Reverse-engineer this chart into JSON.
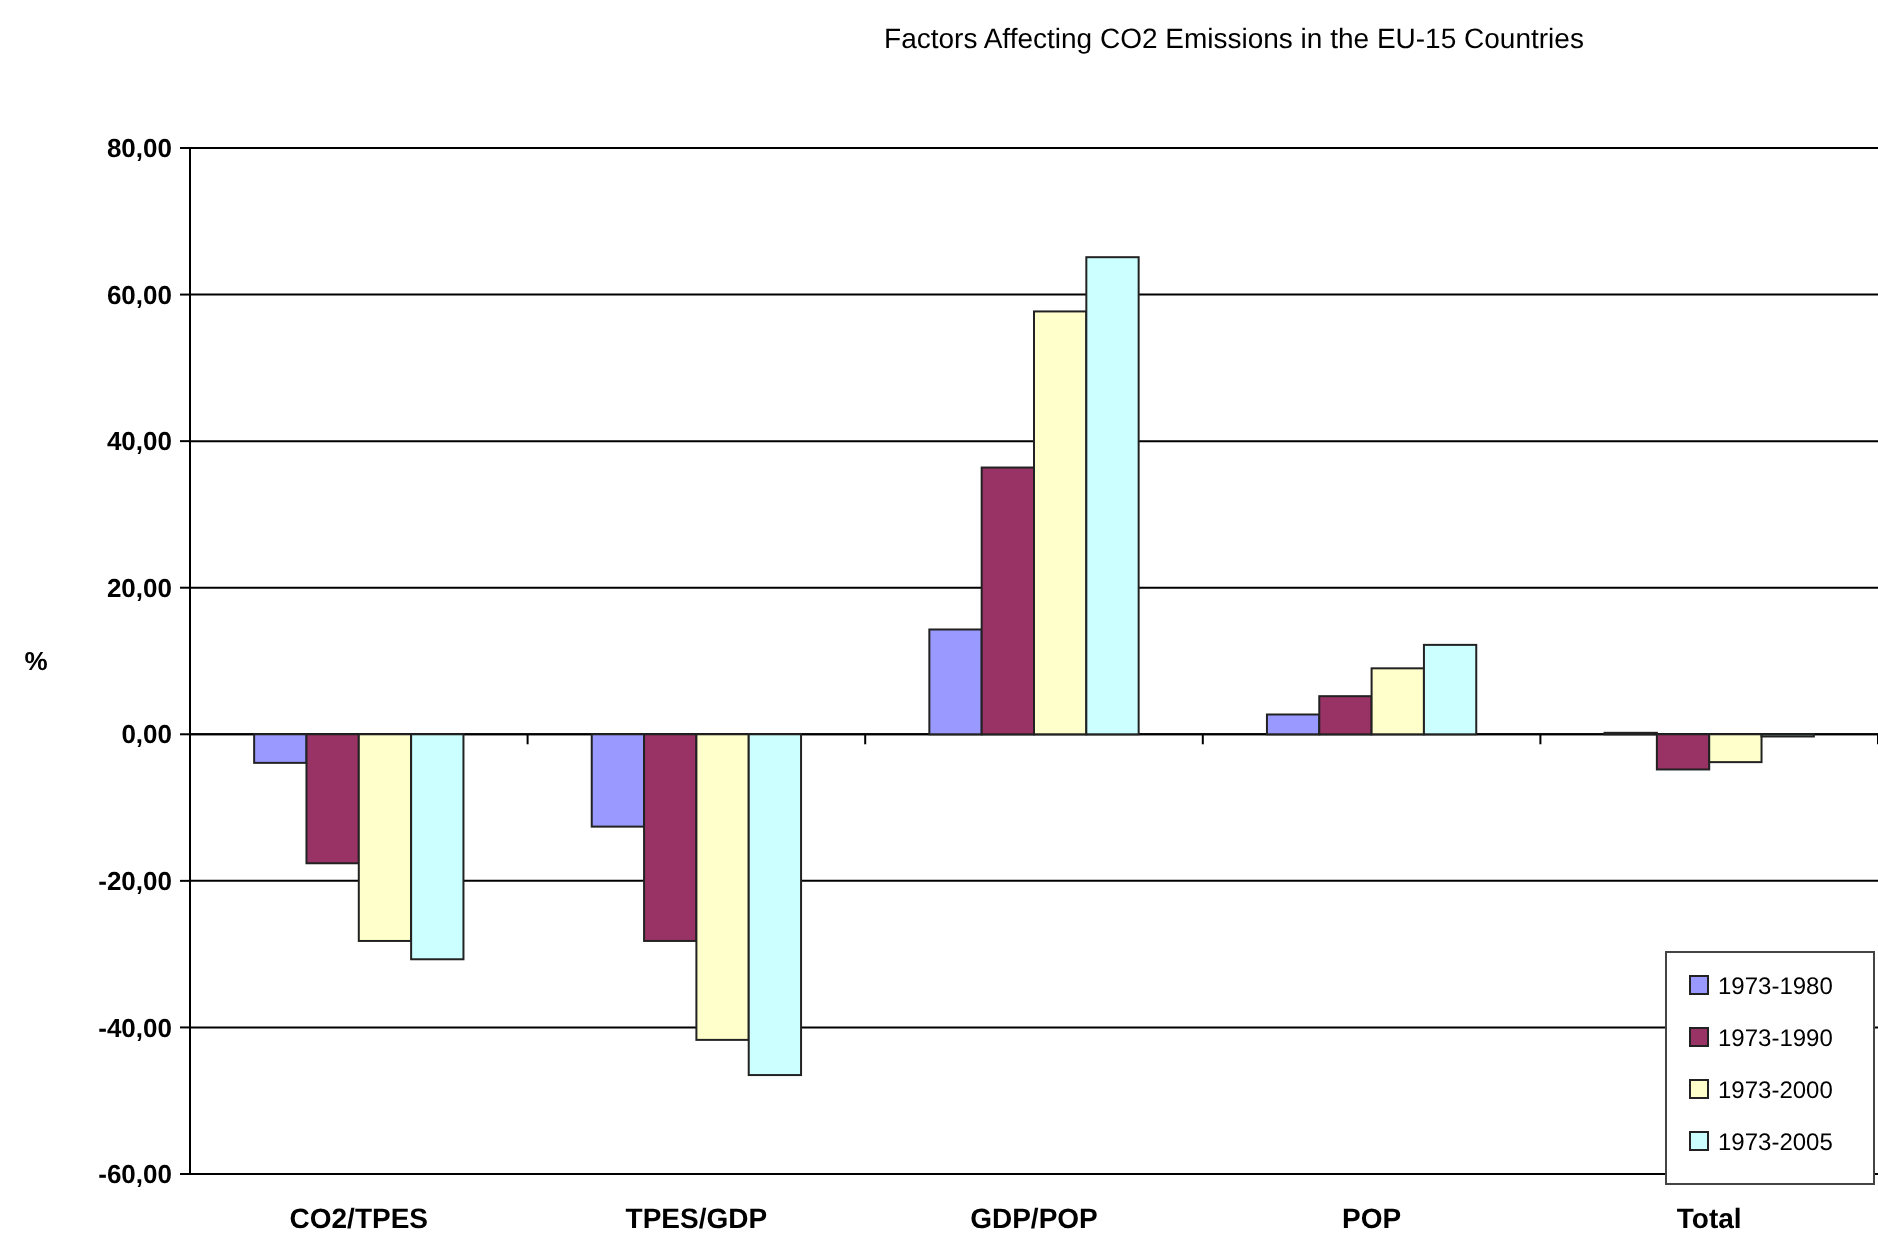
{
  "chart_data": {
    "type": "bar",
    "title": "Factors Affecting CO2 Emissions in the EU-15 Countries",
    "ylabel": "%",
    "categories": [
      "CO2/TPES",
      "TPES/GDP",
      "GDP/POP",
      "POP",
      "Total"
    ],
    "series": [
      {
        "name": "1973-1980",
        "color": "#9999ff",
        "values": [
          -3.9,
          -12.6,
          14.3,
          2.7,
          0.2
        ]
      },
      {
        "name": "1973-1990",
        "color": "#993366",
        "values": [
          -17.6,
          -28.2,
          36.4,
          5.2,
          -4.8
        ]
      },
      {
        "name": "1973-2000",
        "color": "#ffffcc",
        "values": [
          -28.2,
          -41.7,
          57.7,
          9.0,
          -3.8
        ]
      },
      {
        "name": "1973-2005",
        "color": "#ccffff",
        "values": [
          -30.7,
          -46.5,
          65.1,
          12.2,
          -0.3
        ]
      }
    ],
    "ylim": [
      -60,
      80
    ],
    "yticks": [
      {
        "value": -60,
        "label": "-60,00"
      },
      {
        "value": -40,
        "label": "-40,00"
      },
      {
        "value": -20,
        "label": "-20,00"
      },
      {
        "value": 0,
        "label": "0,00"
      },
      {
        "value": 20,
        "label": "20,00"
      },
      {
        "value": 40,
        "label": "40,00"
      },
      {
        "value": 60,
        "label": "60,00"
      },
      {
        "value": 80,
        "label": "80,00"
      }
    ],
    "grid": "y",
    "legend": "bottom right"
  }
}
